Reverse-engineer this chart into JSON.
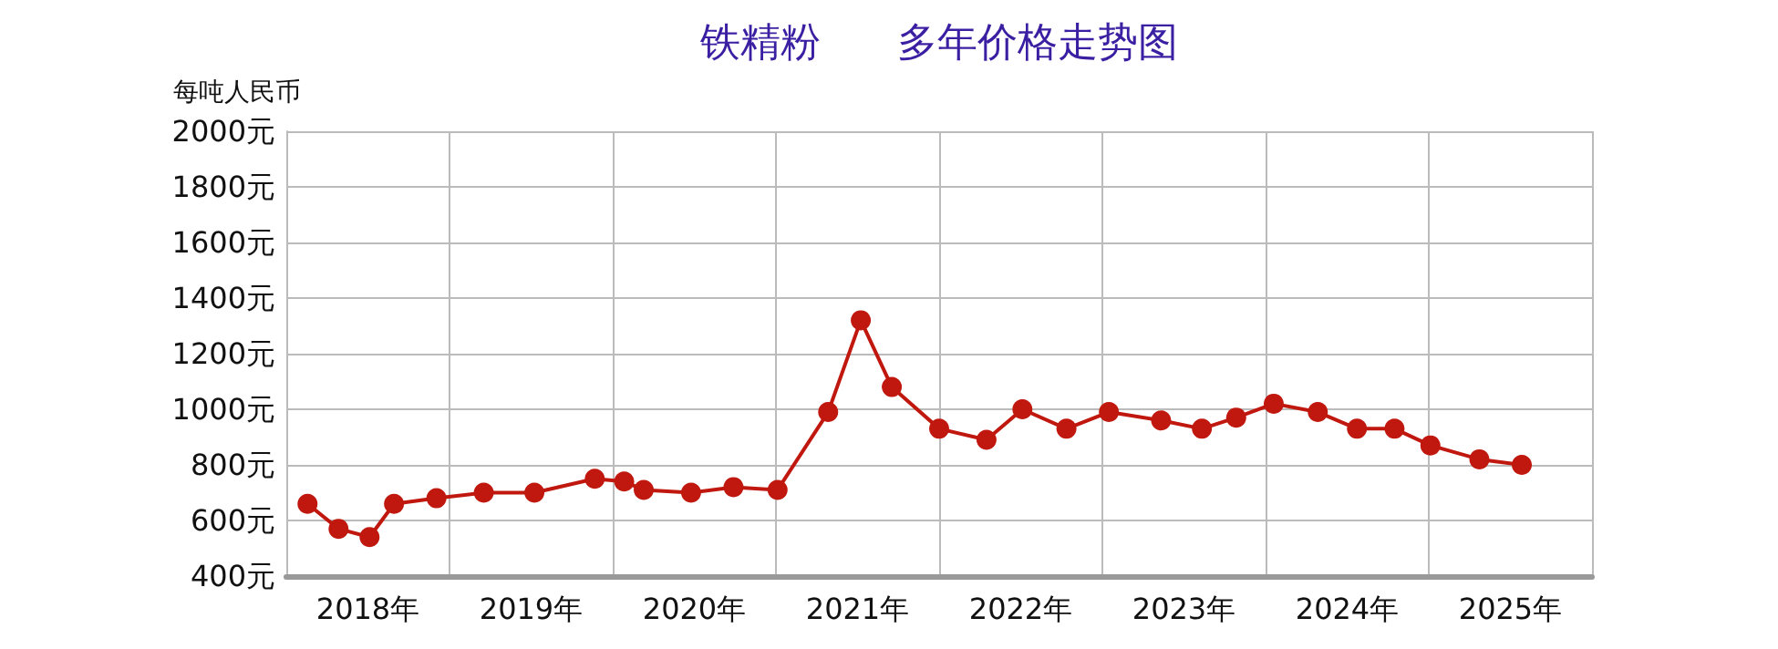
{
  "chart_data": {
    "type": "line",
    "title": "铁精粉      多年价格走势图",
    "ylabel": "每吨人民币",
    "x": [
      2018.13,
      2018.32,
      2018.51,
      2018.66,
      2018.92,
      2019.21,
      2019.52,
      2019.89,
      2020.07,
      2020.19,
      2020.48,
      2020.74,
      2021.01,
      2021.32,
      2021.52,
      2021.71,
      2022.0,
      2022.29,
      2022.51,
      2022.78,
      2023.04,
      2023.36,
      2023.61,
      2023.82,
      2024.05,
      2024.32,
      2024.56,
      2024.79,
      2025.01,
      2025.31,
      2025.57
    ],
    "series": [
      {
        "color": "#c0180e",
        "values": [
          660,
          570,
          540,
          660,
          680,
          700,
          700,
          750,
          740,
          710,
          700,
          720,
          710,
          990,
          1320,
          1080,
          930,
          890,
          1000,
          930,
          990,
          960,
          930,
          970,
          1020,
          990,
          930,
          930,
          870,
          820,
          800
        ]
      }
    ],
    "xlim": [
      2018,
      2026
    ],
    "xticks": [
      {
        "value": 2018,
        "label": null
      },
      {
        "value": 2018.5,
        "label": "2018年"
      },
      {
        "value": 2019,
        "label": null
      },
      {
        "value": 2019.5,
        "label": "2019年"
      },
      {
        "value": 2020,
        "label": null
      },
      {
        "value": 2020.5,
        "label": "2020年"
      },
      {
        "value": 2021,
        "label": null
      },
      {
        "value": 2021.5,
        "label": "2021年"
      },
      {
        "value": 2022,
        "label": null
      },
      {
        "value": 2022.5,
        "label": "2022年"
      },
      {
        "value": 2023,
        "label": null
      },
      {
        "value": 2023.5,
        "label": "2023年"
      },
      {
        "value": 2024,
        "label": null
      },
      {
        "value": 2024.5,
        "label": "2024年"
      },
      {
        "value": 2025,
        "label": null
      },
      {
        "value": 2025.5,
        "label": "2025年"
      },
      {
        "value": 2026,
        "label": null
      }
    ],
    "ylim": [
      400,
      2000
    ],
    "yticks": [
      {
        "value": 400,
        "label": "400元"
      },
      {
        "value": 600,
        "label": "600元"
      },
      {
        "value": 800,
        "label": "800元"
      },
      {
        "value": 1000,
        "label": "1000元"
      },
      {
        "value": 1200,
        "label": "1200元"
      },
      {
        "value": 1400,
        "label": "1400元"
      },
      {
        "value": 1600,
        "label": "1600元"
      },
      {
        "value": 1800,
        "label": "1800元"
      },
      {
        "value": 2000,
        "label": "2000元"
      }
    ],
    "grid": true,
    "marker": "circle",
    "line_style": "solid"
  }
}
